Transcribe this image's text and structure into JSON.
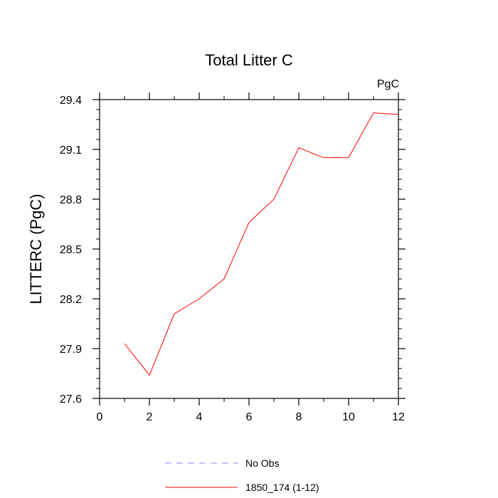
{
  "chart_data": {
    "type": "line",
    "title": "Total Litter C",
    "units_label": "PgC",
    "xlabel": "",
    "ylabel": "LITTERC  (PgC)",
    "xlim": [
      0,
      12
    ],
    "ylim": [
      27.6,
      29.4
    ],
    "x_ticks": [
      0,
      2,
      4,
      6,
      8,
      10,
      12
    ],
    "y_ticks": [
      27.6,
      27.9,
      28.2,
      28.5,
      28.8,
      29.1,
      29.4
    ],
    "x_tick_labels": [
      "0",
      "2",
      "4",
      "6",
      "8",
      "10",
      "12"
    ],
    "y_tick_labels": [
      "27.6",
      "27.9",
      "28.2",
      "28.5",
      "28.8",
      "29.1",
      "29.4"
    ],
    "grid": false,
    "legend_placement": "bottom",
    "series": [
      {
        "name": "No Obs",
        "color": "#8888ff",
        "style": "dashed",
        "x": [],
        "values": []
      },
      {
        "name": "1850_174 (1-12)",
        "color": "#ff0000",
        "style": "solid",
        "x": [
          1,
          2,
          3,
          4,
          5,
          6,
          7,
          8,
          9,
          10,
          11,
          12
        ],
        "values": [
          27.93,
          27.74,
          28.11,
          28.2,
          28.32,
          28.66,
          28.8,
          29.11,
          29.05,
          29.05,
          29.32,
          29.31
        ]
      }
    ]
  }
}
